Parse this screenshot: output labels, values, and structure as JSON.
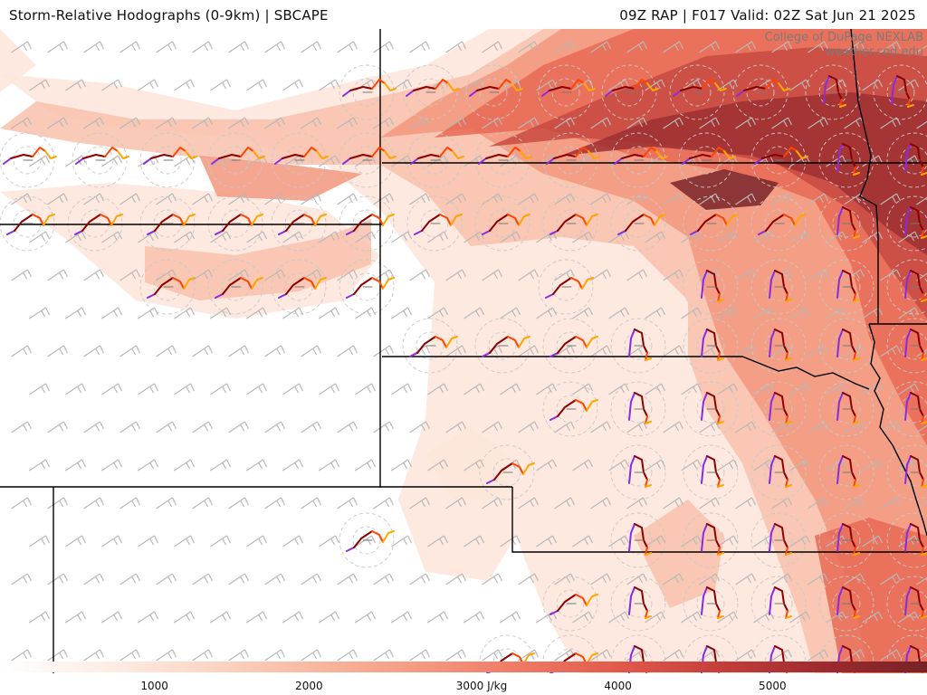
{
  "header": {
    "title": "Storm-Relative Hodographs (0-9km) | SBCAPE",
    "run_info": "09Z RAP | F017 Valid: 02Z Sat Jun 21 2025"
  },
  "credit": {
    "line1": "College of DuPage NEXLAB",
    "line2": "weather.cod.edu"
  },
  "colorbar": {
    "min": 0,
    "max": 6000,
    "colors": [
      "#ffffff",
      "#fdeee6",
      "#fbd7c6",
      "#f8b9a1",
      "#f59c83",
      "#ef7b66",
      "#e2594b",
      "#c43e3b",
      "#9e2a2f",
      "#742327"
    ],
    "ticks": [
      "1000",
      "2000",
      "3000 J/kg",
      "4000",
      "5000"
    ]
  },
  "map": {
    "cape_colors": {
      "c1": "#fde5d9",
      "c2": "#f8c1ab",
      "c3": "#f3977d",
      "c4": "#e86a55",
      "c5": "#c84a42",
      "c6": "#9e2f32",
      "c7": "#7a2329"
    },
    "hodograph_colors": {
      "low": "#8a2be2",
      "mid": "#8b0000",
      "upper": "#ff4500",
      "top": "#ffa500"
    },
    "barb_color": "#b8b8b8",
    "border_color": "#000000"
  }
}
